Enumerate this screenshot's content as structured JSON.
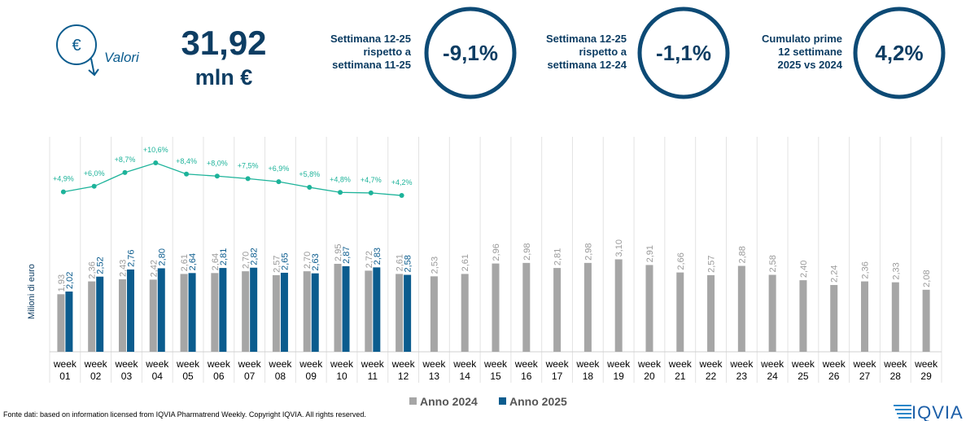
{
  "header": {
    "icon_label": "Valori",
    "total_value": "31,92",
    "total_unit": "mln €",
    "kpis": [
      {
        "label": "Settimana 12-25 rispetto a settimana 11-25",
        "value": "-9,1%"
      },
      {
        "label": "Settimana 12-25 rispetto a settimana 12-24",
        "value": "-1,1%"
      },
      {
        "label": "Cumulato prime 12 settimane 2025 vs 2024",
        "value": "4,2%"
      }
    ]
  },
  "chart_data": {
    "type": "bar",
    "y_label": "Milioni di euro",
    "categories": [
      "week 01",
      "week 02",
      "week 03",
      "week 04",
      "week 05",
      "week 06",
      "week 07",
      "week 08",
      "week 09",
      "week 10",
      "week 11",
      "week 12",
      "week 13",
      "week 14",
      "week 15",
      "week 16",
      "week 17",
      "week 18",
      "week 19",
      "week 20",
      "week 21",
      "week 22",
      "week 23",
      "week 24",
      "week 25",
      "week 26",
      "week 27",
      "week 28",
      "week 29"
    ],
    "ylim": [
      0,
      7.7
    ],
    "y2lim": [
      -26.5,
      18.6
    ],
    "series": [
      {
        "name": "Anno 2024",
        "color": "#a6a6a6",
        "values": [
          1.93,
          2.36,
          2.43,
          2.42,
          2.61,
          2.64,
          2.7,
          2.57,
          2.7,
          2.95,
          2.72,
          2.61,
          2.53,
          2.61,
          2.96,
          2.98,
          2.81,
          2.98,
          3.1,
          2.91,
          2.66,
          2.57,
          2.88,
          2.58,
          2.4,
          2.24,
          2.36,
          2.33,
          2.08
        ],
        "value_labels": [
          "1,93",
          "2,36",
          "2,43",
          "2,42",
          "2,61",
          "2,64",
          "2,70",
          "2,57",
          "2,70",
          "2,95",
          "2,72",
          "2,61",
          "2,53",
          "2,61",
          "2,96",
          "2,98",
          "2,81",
          "2,98",
          "3,10",
          "2,91",
          "2,66",
          "2,57",
          "2,88",
          "2,58",
          "2,40",
          "2,24",
          "2,36",
          "2,33",
          "2,08"
        ]
      },
      {
        "name": "Anno 2025",
        "color": "#0b5c8e",
        "values": [
          2.02,
          2.52,
          2.76,
          2.8,
          2.64,
          2.81,
          2.82,
          2.65,
          2.63,
          2.87,
          2.83,
          2.58,
          null,
          null,
          null,
          null,
          null,
          null,
          null,
          null,
          null,
          null,
          null,
          null,
          null,
          null,
          null,
          null,
          null
        ],
        "value_labels": [
          "2,02",
          "2,52",
          "2,76",
          "2,80",
          "2,64",
          "2,81",
          "2,82",
          "2,65",
          "2,63",
          "2,87",
          "2,83",
          "2,58",
          null,
          null,
          null,
          null,
          null,
          null,
          null,
          null,
          null,
          null,
          null,
          null,
          null,
          null,
          null,
          null,
          null
        ]
      },
      {
        "type": "line",
        "axis": "y2",
        "color": "#1db39a",
        "values": [
          4.9,
          6.0,
          8.7,
          10.6,
          8.4,
          8.0,
          7.5,
          6.9,
          5.8,
          4.8,
          4.7,
          4.2,
          null,
          null,
          null,
          null,
          null,
          null,
          null,
          null,
          null,
          null,
          null,
          null,
          null,
          null,
          null,
          null,
          null
        ],
        "value_labels": [
          "+4,9%",
          "+6,0%",
          "+8,7%",
          "+10,6%",
          "+8,4%",
          "+8,0%",
          "+7,5%",
          "+6,9%",
          "+5,8%",
          "+4,8%",
          "+4,7%",
          "+4,2%",
          null,
          null,
          null,
          null,
          null,
          null,
          null,
          null,
          null,
          null,
          null,
          null,
          null,
          null,
          null,
          null,
          null
        ]
      }
    ],
    "legend": "bottom"
  },
  "footer": {
    "source": "Fonte dati: based on information licensed from IQVIA Pharmatrend Weekly. Copyright IQVIA. All rights reserved.",
    "logo": "IQVIA"
  }
}
